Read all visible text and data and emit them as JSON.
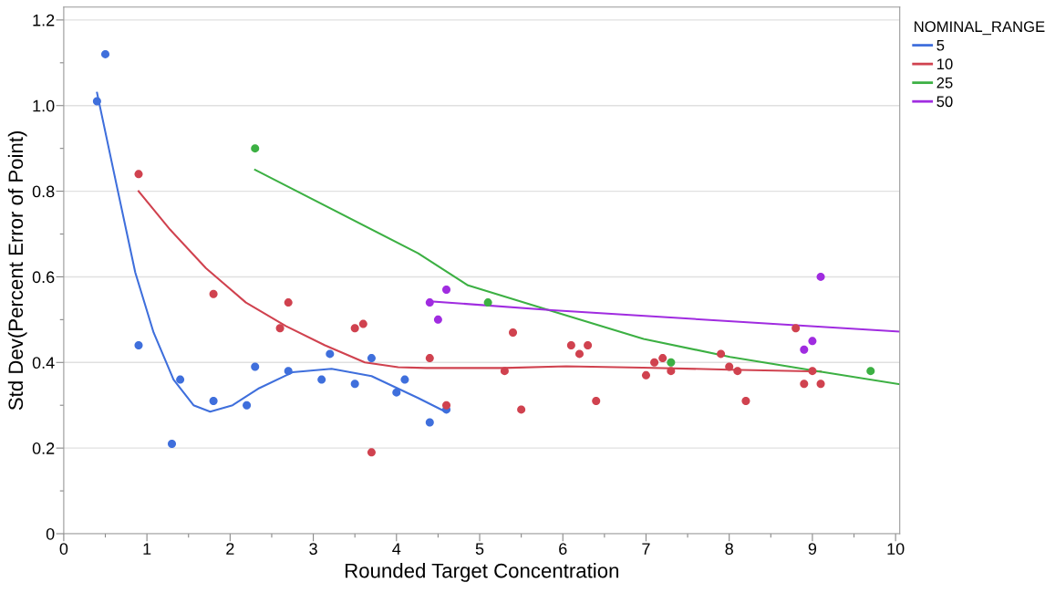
{
  "chart_data": {
    "type": "scatter",
    "xlabel": "Rounded Target Concentration",
    "ylabel": "Std Dev(Percent Error of Point)",
    "legend_title": "NOMINAL_RANGE",
    "legend": "right",
    "grid": "y",
    "marker": "circle",
    "xlim": [
      0,
      10.05
    ],
    "ylim": [
      0,
      1.23
    ],
    "xticks": [
      0,
      {
        "value": 0.5,
        "label": null
      },
      1,
      {
        "value": 1.5,
        "label": null
      },
      2,
      {
        "value": 2.5,
        "label": null
      },
      3,
      {
        "value": 3.5,
        "label": null
      },
      4,
      {
        "value": 4.5,
        "label": null
      },
      5,
      {
        "value": 5.5,
        "label": null
      },
      6,
      {
        "value": 6.5,
        "label": null
      },
      7,
      {
        "value": 7.5,
        "label": null
      },
      8,
      {
        "value": 8.5,
        "label": null
      },
      9,
      {
        "value": 9.5,
        "label": null
      },
      10
    ],
    "yticks": [
      0,
      {
        "value": 0.1,
        "label": null
      },
      0.2,
      {
        "value": 0.3,
        "label": null
      },
      0.4,
      {
        "value": 0.5,
        "label": null
      },
      0.6,
      {
        "value": 0.7,
        "label": null
      },
      0.8,
      {
        "value": 0.9,
        "label": null
      },
      {
        "value": 1.0,
        "label": "1.0"
      },
      {
        "value": 1.1,
        "label": null
      },
      1.2
    ],
    "series": [
      {
        "color": "#3f6fdc",
        "x": [
          0.4,
          0.5,
          0.9,
          1.3,
          1.4,
          1.8,
          2.2,
          2.3,
          2.7,
          3.1,
          3.2,
          3.5,
          3.7,
          4.0,
          4.1,
          4.4,
          4.6
        ],
        "values": [
          1.01,
          1.12,
          0.44,
          0.21,
          0.36,
          0.31,
          0.3,
          0.39,
          0.38,
          0.36,
          0.42,
          0.35,
          0.41,
          0.33,
          0.36,
          0.26,
          0.29
        ]
      },
      {
        "color": "#d0424f",
        "x": [
          0.9,
          1.8,
          2.6,
          2.7,
          3.5,
          3.6,
          3.7,
          4.4,
          4.6,
          5.3,
          5.4,
          5.5,
          6.1,
          6.2,
          6.3,
          6.4,
          7.0,
          7.1,
          7.2,
          7.3,
          7.9,
          8.0,
          8.1,
          8.2,
          8.8,
          8.9,
          9.0,
          9.1
        ],
        "values": [
          0.84,
          0.56,
          0.48,
          0.54,
          0.48,
          0.49,
          0.19,
          0.41,
          0.3,
          0.38,
          0.47,
          0.29,
          0.44,
          0.42,
          0.44,
          0.31,
          0.37,
          0.4,
          0.41,
          0.38,
          0.42,
          0.39,
          0.38,
          0.31,
          0.48,
          0.35,
          0.38,
          0.35
        ]
      },
      {
        "color": "#3cb043",
        "x": [
          2.3,
          5.1,
          7.3,
          9.7
        ],
        "values": [
          0.9,
          0.54,
          0.4,
          0.38
        ]
      },
      {
        "color": "#a02ce0",
        "x": [
          4.4,
          4.5,
          4.6,
          8.9,
          9.0,
          9.1
        ],
        "values": [
          0.54,
          0.5,
          0.57,
          0.43,
          0.45,
          0.6
        ]
      },
      {
        "type": "line",
        "marker": "none",
        "name": "5",
        "color": "#3f6fdc",
        "x": [
          0.4,
          0.64,
          0.86,
          1.08,
          1.32,
          1.56,
          1.76,
          2.03,
          2.35,
          2.75,
          3.22,
          3.7,
          4.26,
          4.6
        ],
        "values": [
          1.03,
          0.81,
          0.61,
          0.47,
          0.36,
          0.3,
          0.285,
          0.3,
          0.34,
          0.377,
          0.385,
          0.368,
          0.317,
          0.284
        ]
      },
      {
        "type": "line",
        "marker": "none",
        "name": "10",
        "color": "#d0424f",
        "x": [
          0.9,
          1.28,
          1.71,
          2.19,
          2.67,
          3.14,
          3.62,
          4.02,
          4.36,
          5.28,
          6.04,
          6.96,
          8.01,
          9.1
        ],
        "values": [
          0.8,
          0.71,
          0.62,
          0.54,
          0.485,
          0.44,
          0.4,
          0.389,
          0.387,
          0.387,
          0.391,
          0.388,
          0.383,
          0.379
        ]
      },
      {
        "type": "line",
        "marker": "none",
        "name": "25",
        "color": "#3cb043",
        "x": [
          2.3,
          4.26,
          4.86,
          5.87,
          6.97,
          8.01,
          9.02,
          10.05
        ],
        "values": [
          0.85,
          0.655,
          0.58,
          0.52,
          0.455,
          0.413,
          0.381,
          0.349
        ]
      },
      {
        "type": "line",
        "marker": "none",
        "name": "50",
        "color": "#a02ce0",
        "x": [
          4.4,
          5.87,
          10.05
        ],
        "values": [
          0.543,
          0.522,
          0.472
        ]
      }
    ]
  }
}
